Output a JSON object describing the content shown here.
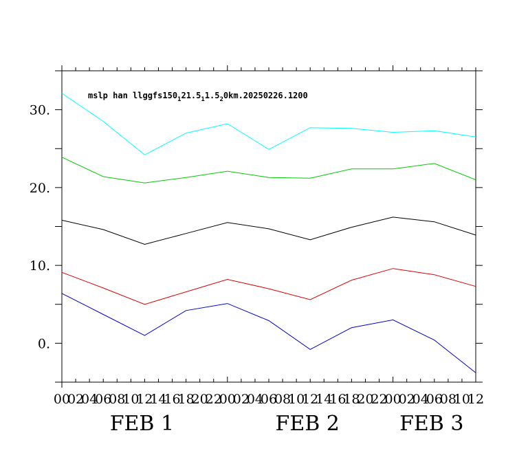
{
  "chart_data": {
    "type": "line",
    "title": "mslp han llggfs150",
    "title_parts": [
      {
        "text": "mslp han llggfs150",
        "sub": false
      },
      {
        "text": "1",
        "sub": true
      },
      {
        "text": "21.5",
        "sub": false
      },
      {
        "text": "1",
        "sub": true
      },
      {
        "text": "1.5",
        "sub": false
      },
      {
        "text": "2",
        "sub": true
      },
      {
        "text": "0km.20250226.1200",
        "sub": false
      }
    ],
    "xlabel": "",
    "ylabel": "",
    "x_hours": [
      0,
      6,
      12,
      18,
      24,
      30,
      36,
      42,
      48,
      54,
      60,
      66
    ],
    "xlim": [
      0,
      60
    ],
    "ylim": [
      -5,
      35
    ],
    "yticks": [
      0,
      10,
      20,
      30
    ],
    "ytick_labels": [
      "0.",
      "10.",
      "20.",
      "30."
    ],
    "xtick_labels": [
      "00",
      "02",
      "04",
      "06",
      "08",
      "10",
      "12",
      "14",
      "16",
      "18",
      "20",
      "22",
      "00",
      "02",
      "04",
      "06",
      "08",
      "10",
      "12",
      "14",
      "16",
      "18",
      "20",
      "22",
      "00",
      "02",
      "04",
      "06",
      "08",
      "10",
      "12"
    ],
    "date_labels": [
      {
        "text": "FEB    1",
        "hour": 12
      },
      {
        "text": "FEB    2",
        "hour": 36
      },
      {
        "text": "FEB    3",
        "hour": 54
      }
    ],
    "grid": false,
    "series": [
      {
        "color": "#00ffff",
        "x": [
          0,
          6,
          12,
          18,
          24,
          30,
          36,
          42,
          48,
          54,
          60
        ],
        "values": [
          32.1,
          28.5,
          24.2,
          27.0,
          28.2,
          24.9,
          27.7,
          27.6,
          27.1,
          27.3,
          26.5
        ]
      },
      {
        "color": "#00cc00",
        "x": [
          0,
          6,
          12,
          18,
          24,
          30,
          36,
          42,
          48,
          54,
          60
        ],
        "values": [
          23.9,
          21.4,
          20.6,
          21.3,
          22.1,
          21.3,
          21.2,
          22.4,
          22.4,
          23.1,
          21.0
        ]
      },
      {
        "color": "#000000",
        "x": [
          0,
          6,
          12,
          18,
          24,
          30,
          36,
          42,
          48,
          54,
          60
        ],
        "values": [
          15.8,
          14.6,
          12.7,
          14.1,
          15.5,
          14.7,
          13.3,
          14.9,
          16.2,
          15.6,
          13.9
        ]
      },
      {
        "color": "#dd0000",
        "x": [
          0,
          6,
          12,
          18,
          24,
          30,
          36,
          42,
          48,
          54,
          60
        ],
        "values": [
          9.1,
          7.1,
          5.0,
          6.6,
          8.2,
          7.0,
          5.6,
          8.1,
          9.6,
          8.8,
          7.3
        ]
      },
      {
        "color": "#0000cc",
        "x": [
          0,
          6,
          12,
          18,
          24,
          30,
          36,
          42,
          48,
          54,
          60
        ],
        "values": [
          6.4,
          3.7,
          1.0,
          4.2,
          5.1,
          2.9,
          -0.8,
          2.0,
          3.0,
          0.4,
          -3.8
        ]
      }
    ]
  }
}
